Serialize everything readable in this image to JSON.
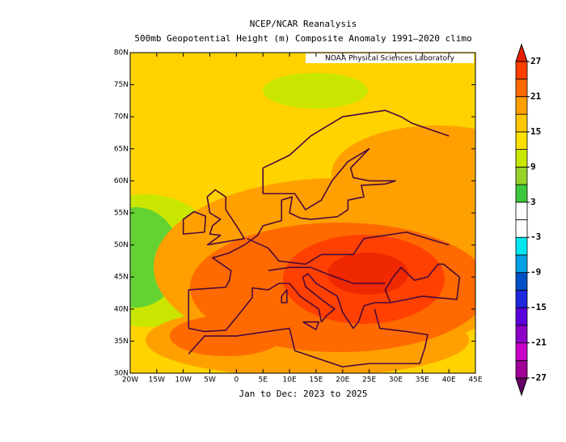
{
  "header": {
    "title": "NCEP/NCAR Reanalysis",
    "subtitle": "500mb Geopotential Height (m) Composite Anomaly 1991–2020 climo"
  },
  "map": {
    "credit": "NOAA Physical Sciences Laboratory",
    "lon_labels": [
      "20W",
      "15W",
      "10W",
      "5W",
      "0",
      "5E",
      "10E",
      "15E",
      "20E",
      "25E",
      "30E",
      "35E",
      "40E",
      "45E"
    ],
    "lat_labels": [
      "30N",
      "35N",
      "40N",
      "45N",
      "50N",
      "55N",
      "60N",
      "65N",
      "70N",
      "75N",
      "80N"
    ],
    "footer": "Jan to Dec: 2023 to 2025"
  },
  "colorbar": {
    "ticks": [
      27,
      21,
      15,
      9,
      3,
      -3,
      -9,
      -15,
      -21,
      -27
    ],
    "colors": [
      "#a00096",
      "#c800c8",
      "#8c00c8",
      "#5a00dc",
      "#1e28dc",
      "#0050c8",
      "#00a0e6",
      "#00e6f0",
      "#ffffff",
      "#ffffff",
      "#3cc83c",
      "#96d228",
      "#c8e600",
      "#ffe100",
      "#ffc800",
      "#ffa000",
      "#ff6a00",
      "#ff4000"
    ],
    "under_color": "#640064",
    "over_color": "#e81e00"
  }
}
